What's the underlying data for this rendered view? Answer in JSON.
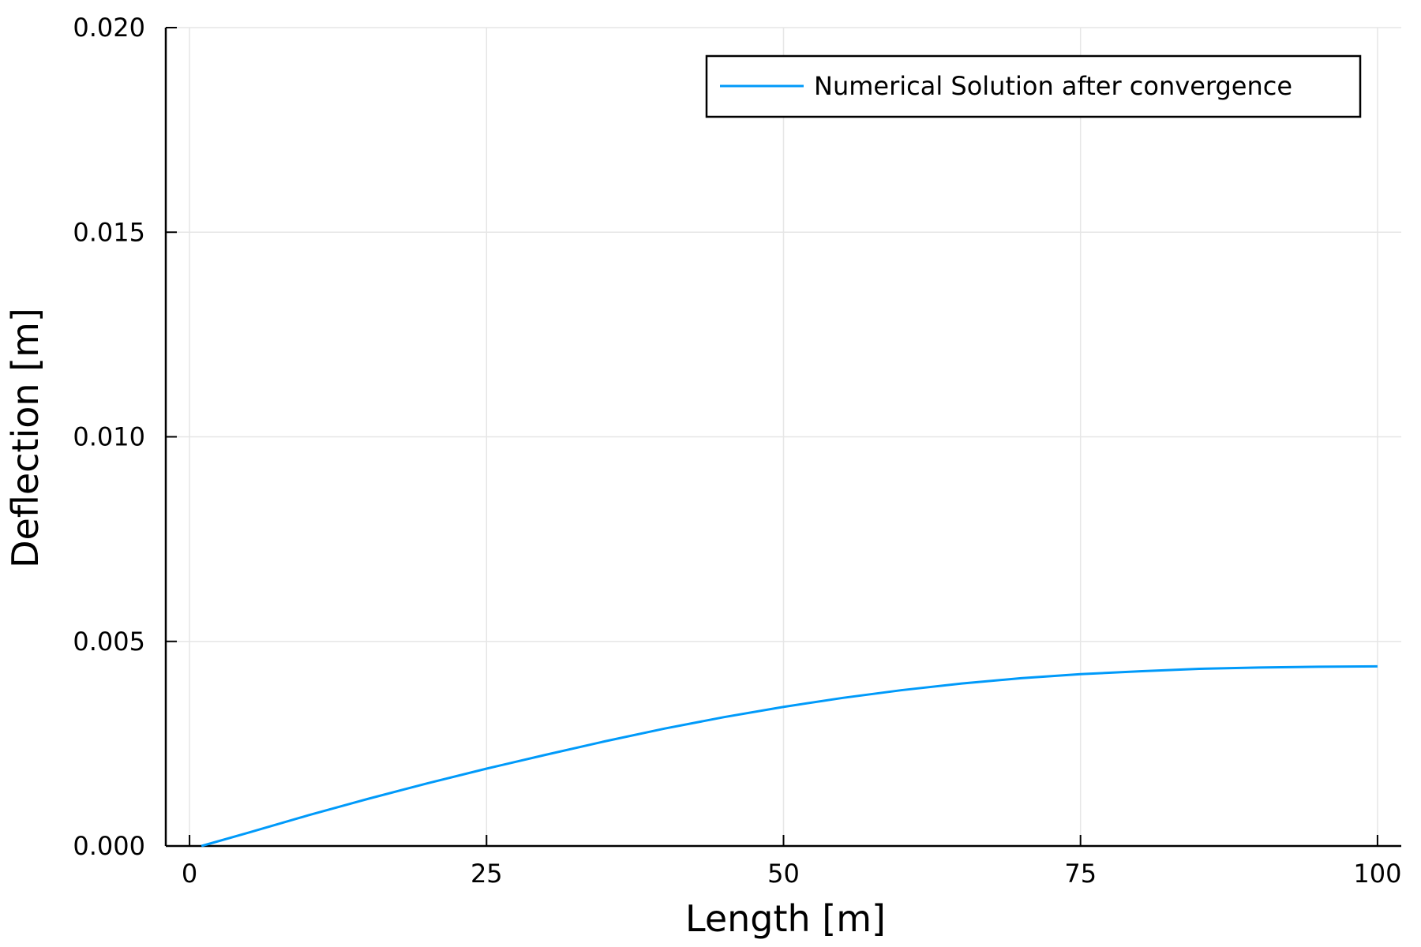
{
  "chart_data": {
    "type": "line",
    "xlabel": "Length [m]",
    "ylabel": "Deflection [m]",
    "xlim": [
      -2,
      102
    ],
    "ylim": [
      0,
      0.02
    ],
    "xticks": [
      0,
      25,
      50,
      75,
      100
    ],
    "xtick_labels": [
      "0",
      "25",
      "50",
      "75",
      "100"
    ],
    "yticks": [
      0,
      0.005,
      0.01,
      0.015,
      0.02
    ],
    "ytick_labels": [
      "0.000",
      "0.005",
      "0.010",
      "0.015",
      "0.020"
    ],
    "grid": true,
    "legend_position": "top-right",
    "series": [
      {
        "name": "Numerical Solution after convergence",
        "color": "#009AFA",
        "x": [
          1,
          5,
          10,
          15,
          20,
          25,
          30,
          35,
          40,
          45,
          50,
          55,
          60,
          65,
          70,
          75,
          80,
          85,
          90,
          95,
          100
        ],
        "y": [
          0.0,
          0.00033,
          0.00075,
          0.00115,
          0.00153,
          0.00189,
          0.00223,
          0.00256,
          0.00287,
          0.00315,
          0.0034,
          0.00362,
          0.00381,
          0.00397,
          0.0041,
          0.0042,
          0.00427,
          0.00433,
          0.00436,
          0.00438,
          0.00439
        ]
      }
    ]
  }
}
